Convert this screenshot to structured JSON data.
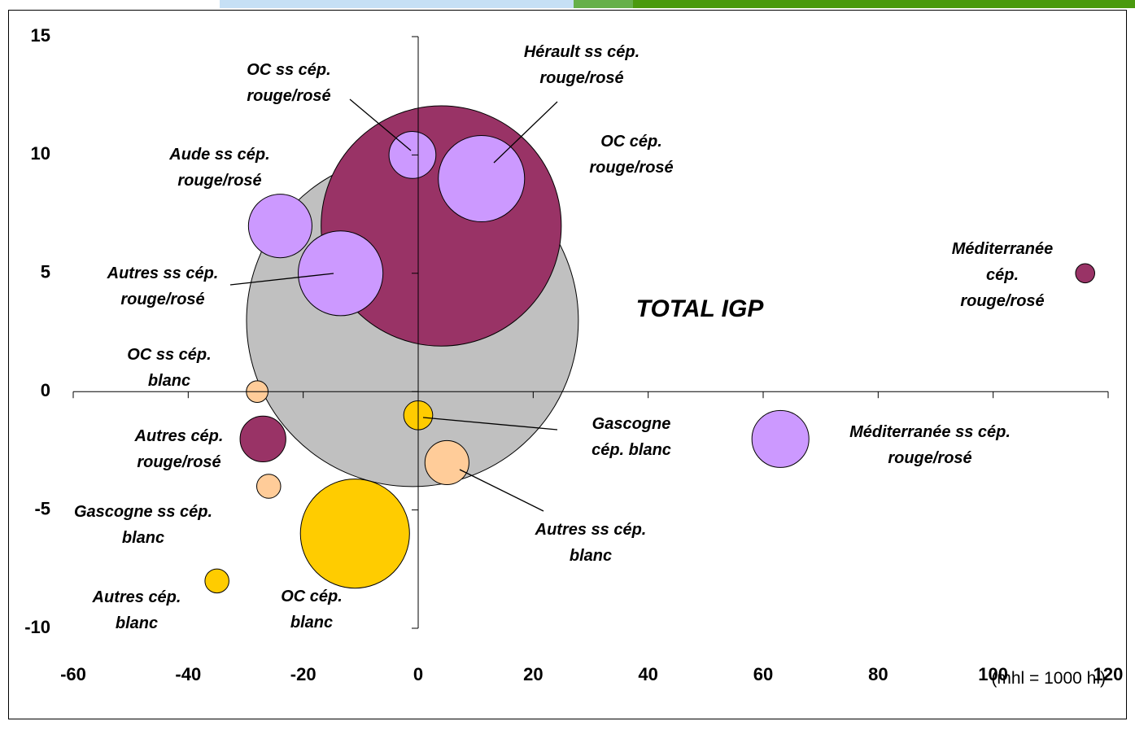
{
  "chart_data": {
    "type": "bubble",
    "footnote": "(mhl = 1000 hl)",
    "xlim": [
      -60,
      120
    ],
    "xticks": [
      -60,
      -40,
      -20,
      0,
      20,
      40,
      60,
      80,
      100,
      120
    ],
    "ylim": [
      -10,
      15
    ],
    "yticks": [
      -10,
      -5,
      0,
      5,
      10,
      15
    ],
    "series": [
      {
        "name": "TOTAL IGP",
        "color": "#c0c0c0",
        "x": -1,
        "y": 3,
        "size": 2100
      },
      {
        "name": "OC cép.\nrouge/rosé",
        "color": "#993366",
        "x": 4,
        "y": 7,
        "size": 1100
      },
      {
        "name": "Hérault ss cép.\nrouge/rosé",
        "color": "#cc99ff",
        "x": 11,
        "y": 9,
        "size": 142
      },
      {
        "name": "OC ss cép.\nrouge/rosé",
        "color": "#cc99ff",
        "x": -1,
        "y": 10,
        "size": 42
      },
      {
        "name": "Aude ss cép.\nrouge/rosé",
        "color": "#cc99ff",
        "x": -24,
        "y": 7,
        "size": 77
      },
      {
        "name": "Autres ss cép.\nrouge/rosé",
        "color": "#cc99ff",
        "x": -13.5,
        "y": 5,
        "size": 137
      },
      {
        "name": "Méditerranée cép.\nrouge/rosé",
        "color": "#993366",
        "x": 116,
        "y": 5,
        "size": 7
      },
      {
        "name": "OC ss cép.\nblanc",
        "color": "#ffcc99",
        "x": -28,
        "y": 0,
        "size": 9
      },
      {
        "name": "Gascogne\ncép. blanc",
        "color": "#ffcc00",
        "x": 0,
        "y": -1,
        "size": 16
      },
      {
        "name": "Autres cép.\nrouge/rosé",
        "color": "#993366",
        "x": -27,
        "y": -2,
        "size": 40
      },
      {
        "name": "Méditerranée ss cép.\nrouge/rosé",
        "color": "#cc99ff",
        "x": 63,
        "y": -2,
        "size": 62
      },
      {
        "name": "Autres ss cép.\nblanc",
        "color": "#ffcc99",
        "x": 5,
        "y": -3,
        "size": 37
      },
      {
        "name": "Gascogne ss cép.\nblanc",
        "color": "#ffcc99",
        "x": -26,
        "y": -4,
        "size": 11
      },
      {
        "name": "OC cép.\nblanc",
        "color": "#ffcc00",
        "x": -11,
        "y": -6,
        "size": 227
      },
      {
        "name": "Autres cép.\nblanc",
        "color": "#ffcc00",
        "x": -35,
        "y": -8,
        "size": 11
      }
    ]
  }
}
